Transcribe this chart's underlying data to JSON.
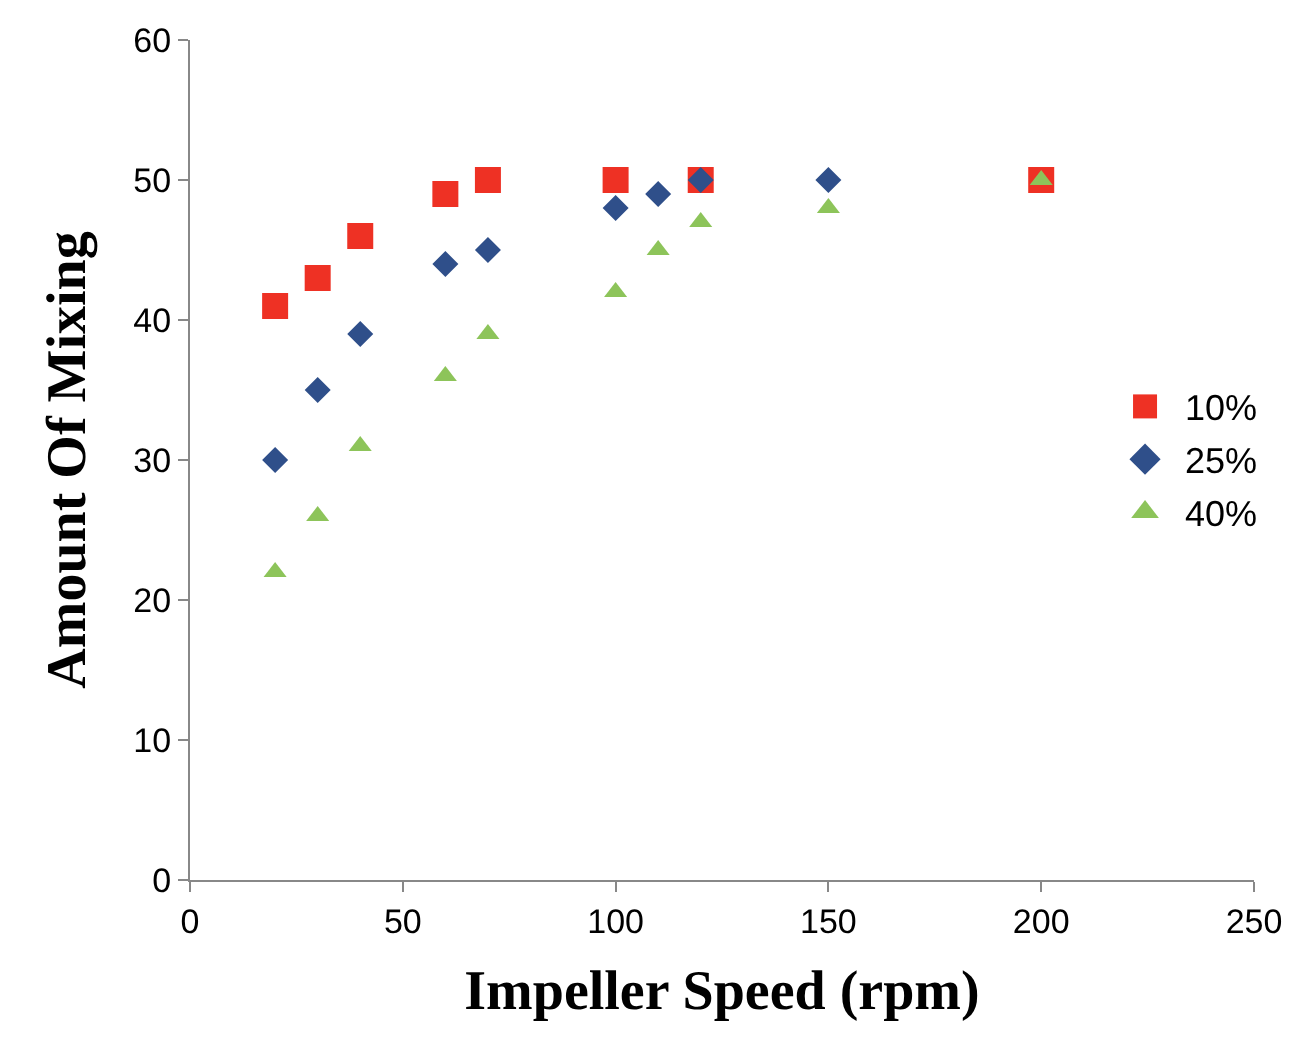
{
  "chart_data": {
    "type": "scatter",
    "xlabel": "Impeller Speed (rpm)",
    "ylabel": "Amount Of Mixing",
    "xlim": [
      0,
      250
    ],
    "xticks": [
      0,
      50,
      100,
      150,
      200,
      250
    ],
    "ylim": [
      0,
      60
    ],
    "yticks": [
      0,
      10,
      20,
      30,
      40,
      50,
      60
    ],
    "legend": "right",
    "series": [
      {
        "name": "10%",
        "color": "#ee3124",
        "marker": "square",
        "x": [
          20,
          30,
          40,
          60,
          70,
          100,
          120,
          200
        ],
        "values": [
          41,
          43,
          46,
          49,
          50,
          50,
          50,
          50
        ]
      },
      {
        "name": "25%",
        "color": "#2f4f8a",
        "marker": "diamond",
        "x": [
          20,
          30,
          40,
          60,
          70,
          100,
          110,
          120,
          150
        ],
        "values": [
          30,
          35,
          39,
          44,
          45,
          48,
          49,
          50,
          50
        ]
      },
      {
        "name": "40%",
        "color": "#8dc45a",
        "marker": "triangle",
        "x": [
          20,
          30,
          40,
          60,
          70,
          100,
          110,
          120,
          150,
          200
        ],
        "values": [
          22,
          26,
          31,
          36,
          39,
          42,
          45,
          47,
          48,
          50
        ]
      }
    ]
  }
}
